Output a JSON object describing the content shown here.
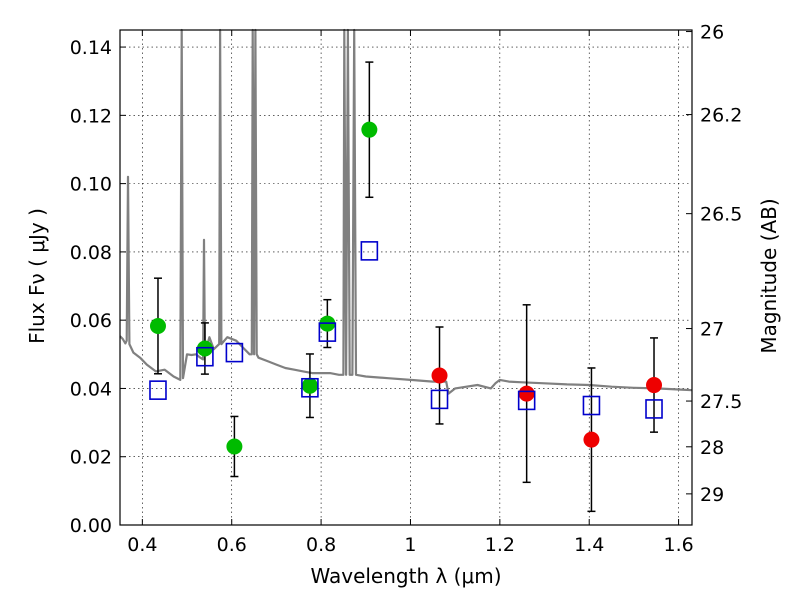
{
  "chart_data": {
    "type": "scatter",
    "xlabel": "Wavelength  λ (μm)",
    "ylabel_left": "Flux  Fν  ( μJy )",
    "ylabel_right": "Magnitude (AB)",
    "xlim": [
      0.35,
      1.63
    ],
    "ylim": [
      0,
      0.145
    ],
    "grid": true,
    "x_ticks": [
      0.4,
      0.6,
      0.8,
      1.0,
      1.2,
      1.4,
      1.6
    ],
    "x_tick_labels": [
      "0.4",
      "0.6",
      "0.8",
      "1",
      "1.2",
      "1.4",
      "1.6"
    ],
    "y_ticks": [
      0.0,
      0.02,
      0.04,
      0.06,
      0.08,
      0.1,
      0.12,
      0.14
    ],
    "y_tick_labels": [
      "0.00",
      "0.02",
      "0.04",
      "0.06",
      "0.08",
      "0.10",
      "0.12",
      "0.14"
    ],
    "magnitude_ticks": [
      {
        "label": "26",
        "mag": 26.0
      },
      {
        "label": "26.2",
        "mag": 26.2
      },
      {
        "label": "26.5",
        "mag": 26.5
      },
      {
        "label": "27",
        "mag": 27.0
      },
      {
        "label": "27.5",
        "mag": 27.5
      },
      {
        "label": "28",
        "mag": 28.0
      },
      {
        "label": "29",
        "mag": 29.0
      }
    ],
    "series": [
      {
        "marker": "circle",
        "color": "#00bb00",
        "points": [
          {
            "x": 0.435,
            "y": 0.0583,
            "err": 0.014
          },
          {
            "x": 0.54,
            "y": 0.0517,
            "err": 0.0075
          },
          {
            "x": 0.606,
            "y": 0.023,
            "err": 0.0088
          },
          {
            "x": 0.775,
            "y": 0.0408,
            "err": 0.0093
          },
          {
            "x": 0.814,
            "y": 0.059,
            "err": 0.007
          },
          {
            "x": 0.908,
            "y": 0.1158,
            "err": 0.0198
          }
        ]
      },
      {
        "marker": "circle",
        "color": "#ee0000",
        "points": [
          {
            "x": 1.065,
            "y": 0.0438,
            "err": 0.0142
          },
          {
            "x": 1.26,
            "y": 0.0385,
            "err": 0.026
          },
          {
            "x": 1.405,
            "y": 0.025,
            "err": 0.021
          },
          {
            "x": 1.545,
            "y": 0.041,
            "err": 0.0138
          }
        ]
      },
      {
        "marker": "open-square",
        "color": "#0000cc",
        "points": [
          {
            "x": 0.435,
            "y": 0.0395
          },
          {
            "x": 0.54,
            "y": 0.0493
          },
          {
            "x": 0.606,
            "y": 0.0505
          },
          {
            "x": 0.775,
            "y": 0.0402
          },
          {
            "x": 0.814,
            "y": 0.0565
          },
          {
            "x": 0.908,
            "y": 0.0803
          },
          {
            "x": 1.065,
            "y": 0.0368
          },
          {
            "x": 1.26,
            "y": 0.0365
          },
          {
            "x": 1.405,
            "y": 0.035
          },
          {
            "x": 1.545,
            "y": 0.034
          }
        ]
      }
    ],
    "model_spectrum": {
      "color": "#808080",
      "points": [
        [
          0.35,
          0.0553
        ],
        [
          0.356,
          0.0545
        ],
        [
          0.362,
          0.0532
        ],
        [
          0.365,
          0.054
        ],
        [
          0.368,
          0.102
        ],
        [
          0.371,
          0.053
        ],
        [
          0.38,
          0.0505
        ],
        [
          0.395,
          0.049
        ],
        [
          0.41,
          0.047
        ],
        [
          0.43,
          0.045
        ],
        [
          0.45,
          0.0455
        ],
        [
          0.47,
          0.0435
        ],
        [
          0.485,
          0.0425
        ],
        [
          0.488,
          0.145
        ],
        [
          0.491,
          0.043
        ],
        [
          0.5,
          0.05
        ],
        [
          0.51,
          0.0498
        ],
        [
          0.52,
          0.05
        ],
        [
          0.53,
          0.049
        ],
        [
          0.536,
          0.0485
        ],
        [
          0.538,
          0.0835
        ],
        [
          0.54,
          0.05
        ],
        [
          0.55,
          0.055
        ],
        [
          0.56,
          0.0515
        ],
        [
          0.572,
          0.053
        ],
        [
          0.574,
          0.145
        ],
        [
          0.577,
          0.053
        ],
        [
          0.59,
          0.055
        ],
        [
          0.61,
          0.054
        ],
        [
          0.625,
          0.052
        ],
        [
          0.64,
          0.05
        ],
        [
          0.645,
          0.05
        ],
        [
          0.647,
          0.145
        ],
        [
          0.65,
          0.05
        ],
        [
          0.653,
          0.145
        ],
        [
          0.656,
          0.05
        ],
        [
          0.66,
          0.049
        ],
        [
          0.68,
          0.048
        ],
        [
          0.7,
          0.047
        ],
        [
          0.72,
          0.046
        ],
        [
          0.74,
          0.0455
        ],
        [
          0.76,
          0.045
        ],
        [
          0.78,
          0.0445
        ],
        [
          0.8,
          0.0445
        ],
        [
          0.82,
          0.0445
        ],
        [
          0.84,
          0.044
        ],
        [
          0.85,
          0.044
        ],
        [
          0.852,
          0.145
        ],
        [
          0.856,
          0.044
        ],
        [
          0.86,
          0.145
        ],
        [
          0.864,
          0.044
        ],
        [
          0.87,
          0.044
        ],
        [
          0.874,
          0.145
        ],
        [
          0.878,
          0.044
        ],
        [
          0.9,
          0.0435
        ],
        [
          0.95,
          0.043
        ],
        [
          1.0,
          0.0425
        ],
        [
          1.05,
          0.042
        ],
        [
          1.08,
          0.042
        ],
        [
          1.085,
          0.0385
        ],
        [
          1.1,
          0.04
        ],
        [
          1.15,
          0.041
        ],
        [
          1.18,
          0.04
        ],
        [
          1.19,
          0.0415
        ],
        [
          1.2,
          0.0425
        ],
        [
          1.22,
          0.042
        ],
        [
          1.25,
          0.0418
        ],
        [
          1.3,
          0.0415
        ],
        [
          1.35,
          0.0412
        ],
        [
          1.4,
          0.041
        ],
        [
          1.45,
          0.0405
        ],
        [
          1.5,
          0.0402
        ],
        [
          1.55,
          0.04
        ],
        [
          1.6,
          0.0397
        ],
        [
          1.63,
          0.0395
        ]
      ]
    }
  }
}
